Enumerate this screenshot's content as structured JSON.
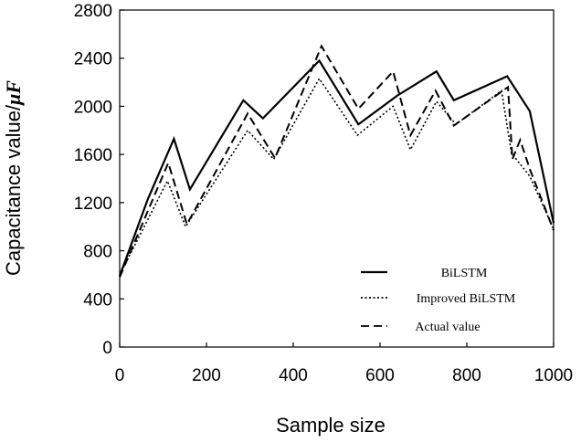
{
  "chart_data": {
    "type": "line",
    "title": "",
    "xlabel": "Sample size",
    "ylabel": "Capacitance value/",
    "ylabel_unit": "μF",
    "xlim": [
      0,
      1000
    ],
    "ylim": [
      0,
      2800
    ],
    "xticks": [
      "0",
      "200",
      "400",
      "600",
      "800",
      "1000"
    ],
    "yticks": [
      "0",
      "400",
      "800",
      "1200",
      "1600",
      "2000",
      "2400",
      "2800"
    ],
    "grid": false,
    "legend_position": "bottom-right",
    "series": [
      {
        "name": "BiLSTM",
        "style": "solid",
        "x": [
          0,
          65,
          125,
          162,
          285,
          330,
          460,
          550,
          640,
          730,
          770,
          893,
          945,
          1000
        ],
        "y": [
          590,
          1230,
          1730,
          1310,
          2050,
          1900,
          2380,
          1850,
          2090,
          2290,
          2050,
          2250,
          1960,
          1030
        ]
      },
      {
        "name": "Improved BiLSTM",
        "style": "dotted",
        "x": [
          0,
          110,
          152,
          295,
          355,
          460,
          548,
          630,
          670,
          730,
          775,
          880,
          903,
          945,
          1000
        ],
        "y": [
          600,
          1380,
          1000,
          1800,
          1560,
          2230,
          1760,
          2000,
          1640,
          2040,
          1850,
          2130,
          1610,
          1420,
          980
        ]
      },
      {
        "name": "Actual value",
        "style": "dashed",
        "x": [
          0,
          112,
          155,
          295,
          358,
          465,
          550,
          630,
          670,
          728,
          770,
          895,
          905,
          923,
          945,
          1000
        ],
        "y": [
          580,
          1530,
          1020,
          1940,
          1570,
          2500,
          1980,
          2290,
          1760,
          2130,
          1840,
          2160,
          1560,
          1720,
          1480,
          970
        ]
      }
    ]
  }
}
